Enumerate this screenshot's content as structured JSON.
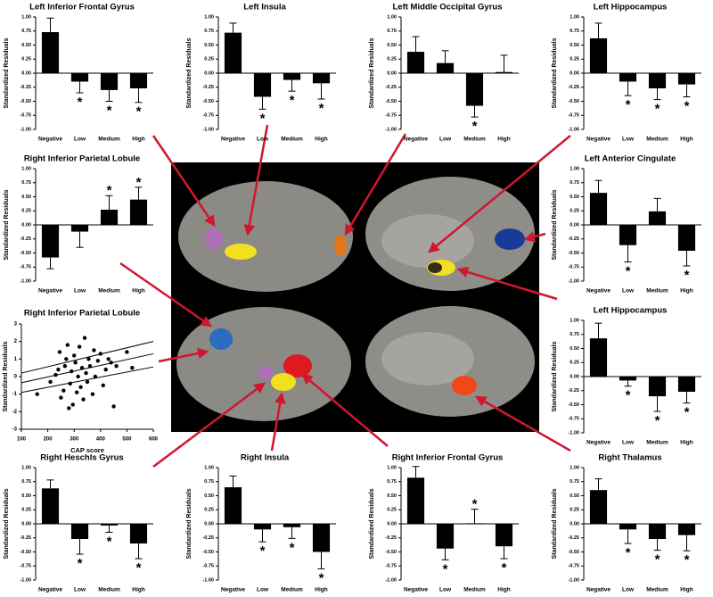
{
  "chart_data": [
    {
      "type": "bar",
      "title": "Left Inferior Frontal Gyrus",
      "ylabel": "Standardized Residuals",
      "categories": [
        "Negative",
        "Low",
        "Medium",
        "High"
      ],
      "values": [
        0.73,
        -0.15,
        -0.3,
        -0.27
      ],
      "errors": [
        0.25,
        0.2,
        0.2,
        0.25
      ],
      "significance": [
        null,
        "*",
        "*",
        "*"
      ],
      "color": "#000000",
      "ylim": [
        -1,
        1
      ],
      "yticks": [
        {
          "value": -1,
          "label": "-1.00"
        },
        {
          "value": -0.75,
          "label": "-0.75"
        },
        {
          "value": -0.5,
          "label": "-0.50"
        },
        {
          "value": -0.25,
          "label": "-0.25"
        },
        {
          "value": 0,
          "label": "0.00"
        },
        {
          "value": 0.25,
          "label": "0.25"
        },
        {
          "value": 0.5,
          "label": "0.50"
        },
        {
          "value": 0.75,
          "label": "0.75"
        },
        {
          "value": 1,
          "label": "1.00"
        }
      ]
    },
    {
      "type": "bar",
      "title": "Left Insula",
      "ylabel": "Standardized Residuals",
      "categories": [
        "Negative",
        "Low",
        "Medium",
        "High"
      ],
      "values": [
        0.72,
        -0.42,
        -0.12,
        -0.18
      ],
      "errors": [
        0.17,
        0.22,
        0.2,
        0.28
      ],
      "significance": [
        null,
        "*",
        "*",
        "*"
      ],
      "color": "#000000",
      "ylim": [
        -1,
        1
      ],
      "yticks": [
        {
          "value": -1,
          "label": "-1.00"
        },
        {
          "value": -0.75,
          "label": "-0.75"
        },
        {
          "value": -0.5,
          "label": "-0.50"
        },
        {
          "value": -0.25,
          "label": "-0.25"
        },
        {
          "value": 0,
          "label": "0.00"
        },
        {
          "value": 0.25,
          "label": "0.25"
        },
        {
          "value": 0.5,
          "label": "0.50"
        },
        {
          "value": 0.75,
          "label": "0.75"
        },
        {
          "value": 1,
          "label": "1.00"
        }
      ]
    },
    {
      "type": "bar",
      "title": "Left Middle Occipital Gyrus",
      "ylabel": "Standardized Residuals",
      "categories": [
        "Negative",
        "Low",
        "Medium",
        "High"
      ],
      "values": [
        0.38,
        0.18,
        -0.58,
        0.02
      ],
      "errors": [
        0.27,
        0.22,
        0.2,
        0.3
      ],
      "significance": [
        null,
        null,
        "*",
        null
      ],
      "color": "#000000",
      "ylim": [
        -1,
        1
      ],
      "yticks": [
        {
          "value": -1,
          "label": "-1.00"
        },
        {
          "value": -0.75,
          "label": "-0.75"
        },
        {
          "value": -0.5,
          "label": "-0.50"
        },
        {
          "value": -0.25,
          "label": "-0.25"
        },
        {
          "value": 0,
          "label": "0.00"
        },
        {
          "value": 0.25,
          "label": "0.25"
        },
        {
          "value": 0.5,
          "label": "0.50"
        },
        {
          "value": 0.75,
          "label": "0.75"
        },
        {
          "value": 1,
          "label": "1.00"
        }
      ]
    },
    {
      "type": "bar",
      "title": "Left Hippocampus",
      "ylabel": "Standardized Residuals",
      "categories": [
        "Negative",
        "Low",
        "Medium",
        "High"
      ],
      "values": [
        0.62,
        -0.15,
        -0.27,
        -0.2
      ],
      "errors": [
        0.27,
        0.25,
        0.2,
        0.22
      ],
      "significance": [
        null,
        "*",
        "*",
        "*"
      ],
      "color": "#000000",
      "ylim": [
        -1,
        1
      ],
      "yticks": [
        {
          "value": -1,
          "label": "-1.00"
        },
        {
          "value": -0.75,
          "label": "-0.75"
        },
        {
          "value": -0.5,
          "label": "-0.50"
        },
        {
          "value": -0.25,
          "label": "-0.25"
        },
        {
          "value": 0,
          "label": "0.00"
        },
        {
          "value": 0.25,
          "label": "0.25"
        },
        {
          "value": 0.5,
          "label": "0.50"
        },
        {
          "value": 0.75,
          "label": "0.75"
        },
        {
          "value": 1,
          "label": "1.00"
        }
      ]
    },
    {
      "type": "bar",
      "title": "Right Inferior Parietal Lobule",
      "ylabel": "Standardized Residuals",
      "categories": [
        "Negative",
        "Low",
        "Medium",
        "High"
      ],
      "values": [
        -0.58,
        -0.12,
        0.27,
        0.45
      ],
      "errors": [
        0.2,
        0.28,
        0.25,
        0.22
      ],
      "significance": [
        null,
        null,
        "*",
        "*"
      ],
      "color": "#000000",
      "ylim": [
        -1,
        1
      ],
      "yticks": [
        {
          "value": -1,
          "label": "-1.00"
        },
        {
          "value": -0.75,
          "label": "-0.75"
        },
        {
          "value": -0.5,
          "label": "-0.50"
        },
        {
          "value": -0.25,
          "label": "-0.25"
        },
        {
          "value": 0,
          "label": "0.00"
        },
        {
          "value": 0.25,
          "label": "0.25"
        },
        {
          "value": 0.5,
          "label": "0.50"
        },
        {
          "value": 0.75,
          "label": "0.75"
        },
        {
          "value": 1,
          "label": "1.00"
        }
      ]
    },
    {
      "type": "bar",
      "title": "Left Anterior Cingulate",
      "ylabel": "Standardized Residuals",
      "categories": [
        "Negative",
        "Low",
        "Medium",
        "High"
      ],
      "values": [
        0.57,
        -0.36,
        0.24,
        -0.46
      ],
      "errors": [
        0.22,
        0.3,
        0.23,
        0.27
      ],
      "significance": [
        null,
        "*",
        null,
        "*"
      ],
      "color": "#000000",
      "ylim": [
        -1,
        1
      ],
      "yticks": [
        {
          "value": -1,
          "label": "-1.00"
        },
        {
          "value": -0.75,
          "label": "-0.75"
        },
        {
          "value": -0.5,
          "label": "-0.50"
        },
        {
          "value": -0.25,
          "label": "-0.25"
        },
        {
          "value": 0,
          "label": "0.00"
        },
        {
          "value": 0.25,
          "label": "0.25"
        },
        {
          "value": 0.5,
          "label": "0.50"
        },
        {
          "value": 0.75,
          "label": "0.75"
        },
        {
          "value": 1,
          "label": "1.00"
        }
      ]
    },
    {
      "type": "scatter",
      "title": "Right Inferior Parietal Lobule",
      "xlabel": "CAP score",
      "ylabel": "Standardized Residuals",
      "color": "#000000",
      "x": [
        160,
        210,
        230,
        240,
        245,
        250,
        260,
        265,
        270,
        275,
        280,
        285,
        290,
        295,
        300,
        305,
        310,
        315,
        320,
        325,
        330,
        335,
        340,
        345,
        350,
        355,
        360,
        370,
        375,
        380,
        390,
        400,
        410,
        420,
        430,
        440,
        450,
        460,
        500,
        520
      ],
      "y": [
        -1.0,
        -0.3,
        0.1,
        0.4,
        1.4,
        -1.2,
        -0.8,
        0.6,
        1.0,
        1.8,
        -1.8,
        -0.4,
        0.3,
        -1.6,
        1.2,
        0.8,
        -0.9,
        0.0,
        1.7,
        -0.6,
        0.5,
        -1.3,
        2.2,
        0.2,
        -0.3,
        1.0,
        0.6,
        -1.0,
        1.5,
        0.0,
        0.9,
        1.3,
        -0.5,
        0.4,
        1.0,
        0.8,
        -1.7,
        0.6,
        1.4,
        0.5
      ],
      "lines": [
        {
          "x": [
            100,
            600
          ],
          "y": [
            0.2,
            2.0
          ]
        },
        {
          "x": [
            100,
            600
          ],
          "y": [
            -0.35,
            1.3
          ]
        },
        {
          "x": [
            100,
            600
          ],
          "y": [
            -0.9,
            0.55
          ]
        }
      ],
      "xlim": [
        100,
        600
      ],
      "ylim": [
        -3,
        3
      ],
      "xticks": [
        100,
        200,
        300,
        400,
        500,
        600
      ],
      "yticks": [
        -3,
        -2,
        -1,
        0,
        1,
        2,
        3
      ]
    },
    {
      "type": "bar",
      "title": "Left Hippocampus",
      "ylabel": "Standardized Residuals",
      "categories": [
        "Negative",
        "Low",
        "Medium",
        "High"
      ],
      "values": [
        0.68,
        -0.07,
        -0.35,
        -0.27
      ],
      "errors": [
        0.27,
        0.1,
        0.27,
        0.2
      ],
      "significance": [
        null,
        "*",
        "*",
        "*"
      ],
      "color": "#000000",
      "ylim": [
        -1,
        1
      ],
      "yticks": [
        {
          "value": -1,
          "label": "-1.00"
        },
        {
          "value": -0.75,
          "label": "-0.75"
        },
        {
          "value": -0.5,
          "label": "-0.50"
        },
        {
          "value": -0.25,
          "label": "-0.25"
        },
        {
          "value": 0,
          "label": "0.00"
        },
        {
          "value": 0.25,
          "label": "0.25"
        },
        {
          "value": 0.5,
          "label": "0.50"
        },
        {
          "value": 0.75,
          "label": "0.75"
        },
        {
          "value": 1,
          "label": "1.00"
        }
      ]
    },
    {
      "type": "bar",
      "title": "Right Heschls Gyrus",
      "ylabel": "Standardized Residuals",
      "categories": [
        "Negative",
        "Low",
        "Medium",
        "High"
      ],
      "values": [
        0.63,
        -0.27,
        -0.03,
        -0.35
      ],
      "errors": [
        0.15,
        0.27,
        0.12,
        0.27
      ],
      "significance": [
        null,
        "*",
        "*",
        "*"
      ],
      "color": "#000000",
      "ylim": [
        -1,
        1
      ],
      "yticks": [
        {
          "value": -1,
          "label": "-1.00"
        },
        {
          "value": -0.75,
          "label": "-0.75"
        },
        {
          "value": -0.5,
          "label": "-0.50"
        },
        {
          "value": -0.25,
          "label": "-0.25"
        },
        {
          "value": 0,
          "label": "0.00"
        },
        {
          "value": 0.25,
          "label": "0.25"
        },
        {
          "value": 0.5,
          "label": "0.50"
        },
        {
          "value": 0.75,
          "label": "0.75"
        },
        {
          "value": 1,
          "label": "1.00"
        }
      ]
    },
    {
      "type": "bar",
      "title": "Right Insula",
      "ylabel": "Standardized Residuals",
      "categories": [
        "Negative",
        "Low",
        "Medium",
        "High"
      ],
      "values": [
        0.65,
        -0.1,
        -0.06,
        -0.5
      ],
      "errors": [
        0.2,
        0.22,
        0.2,
        0.3
      ],
      "significance": [
        null,
        "*",
        "*",
        "*"
      ],
      "color": "#000000",
      "ylim": [
        -1,
        1
      ],
      "yticks": [
        {
          "value": -1,
          "label": "-1.00"
        },
        {
          "value": -0.75,
          "label": "-0.75"
        },
        {
          "value": -0.5,
          "label": "-0.50"
        },
        {
          "value": -0.25,
          "label": "-0.25"
        },
        {
          "value": 0,
          "label": "0.00"
        },
        {
          "value": 0.25,
          "label": "0.25"
        },
        {
          "value": 0.5,
          "label": "0.50"
        },
        {
          "value": 0.75,
          "label": "0.75"
        },
        {
          "value": 1,
          "label": "1.00"
        }
      ]
    },
    {
      "type": "bar",
      "title": "Right Inferior Frontal Gyrus",
      "ylabel": "Standardized Residuals",
      "categories": [
        "Negative",
        "Low",
        "Medium",
        "High"
      ],
      "values": [
        0.82,
        -0.44,
        0.01,
        -0.4
      ],
      "errors": [
        0.2,
        0.2,
        0.25,
        0.22
      ],
      "significance": [
        null,
        "*",
        "*",
        "*"
      ],
      "color": "#000000",
      "ylim": [
        -1,
        1
      ],
      "yticks": [
        {
          "value": -1,
          "label": "-1.00"
        },
        {
          "value": -0.75,
          "label": "-0.75"
        },
        {
          "value": -0.5,
          "label": "-0.50"
        },
        {
          "value": -0.25,
          "label": "-0.25"
        },
        {
          "value": 0,
          "label": "0.00"
        },
        {
          "value": 0.25,
          "label": "0.25"
        },
        {
          "value": 0.5,
          "label": "0.50"
        },
        {
          "value": 0.75,
          "label": "0.75"
        },
        {
          "value": 1,
          "label": "1.00"
        }
      ]
    },
    {
      "type": "bar",
      "title": "Right Thalamus",
      "ylabel": "Standardized Residuals",
      "categories": [
        "Negative",
        "Low",
        "Medium",
        "High"
      ],
      "values": [
        0.6,
        -0.1,
        -0.27,
        -0.2
      ],
      "errors": [
        0.2,
        0.25,
        0.2,
        0.28
      ],
      "significance": [
        null,
        "*",
        "*",
        "*"
      ],
      "color": "#000000",
      "ylim": [
        -1,
        1
      ],
      "yticks": [
        {
          "value": -1,
          "label": "-1.00"
        },
        {
          "value": -0.75,
          "label": "-0.75"
        },
        {
          "value": -0.5,
          "label": "-0.50"
        },
        {
          "value": -0.25,
          "label": "-0.25"
        },
        {
          "value": 0,
          "label": "0.00"
        },
        {
          "value": 0.25,
          "label": "0.25"
        },
        {
          "value": 0.5,
          "label": "0.50"
        },
        {
          "value": 0.75,
          "label": "0.75"
        },
        {
          "value": 1,
          "label": "1.00"
        }
      ]
    }
  ]
}
